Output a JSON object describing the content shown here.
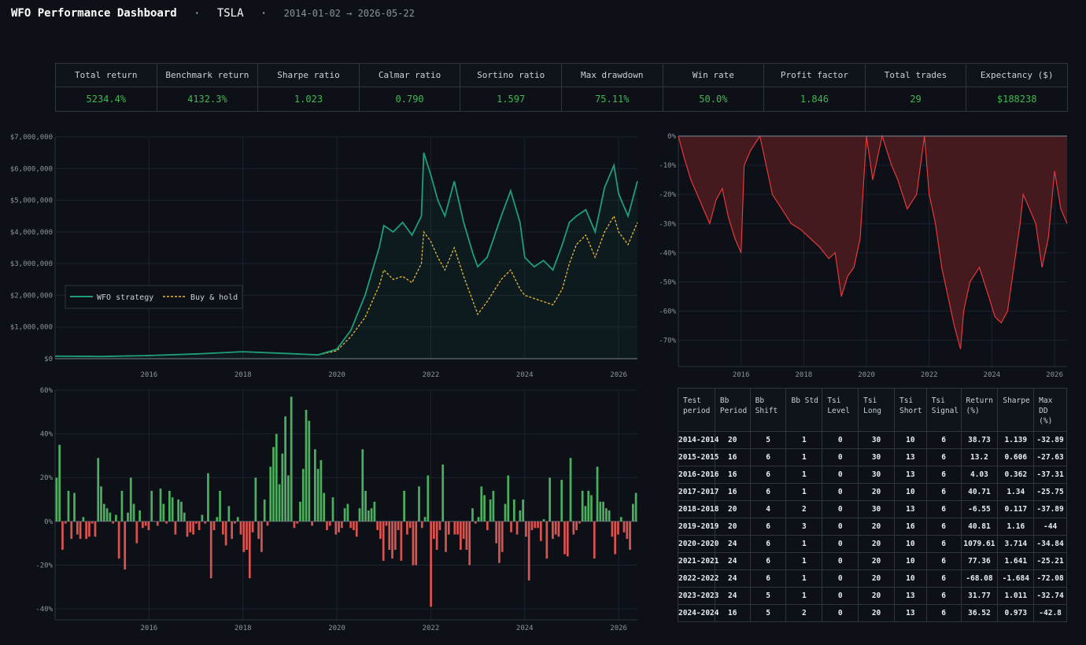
{
  "header": {
    "title": "WFO Performance Dashboard",
    "sep1": "·",
    "ticker": "TSLA",
    "sep2": "·",
    "date_range": "2014-01-02 → 2026-05-22"
  },
  "metrics": [
    {
      "label": "Total return",
      "value": "5234.4%"
    },
    {
      "label": "Benchmark return",
      "value": "4132.3%"
    },
    {
      "label": "Sharpe ratio",
      "value": "1.023"
    },
    {
      "label": "Calmar ratio",
      "value": "0.790"
    },
    {
      "label": "Sortino ratio",
      "value": "1.597"
    },
    {
      "label": "Max drawdown",
      "value": "75.11%"
    },
    {
      "label": "Win rate",
      "value": "50.0%"
    },
    {
      "label": "Profit factor",
      "value": "1.846"
    },
    {
      "label": "Total trades",
      "value": "29"
    },
    {
      "label": "Expectancy ($)",
      "value": "$188238"
    }
  ],
  "colors": {
    "background": "#0d1017",
    "positive": "#3fb950",
    "strategy": "#1f9e78",
    "benchmark": "#e8b93a",
    "drawdown": "#e5383b",
    "bar_up": "#4caf5e",
    "bar_down": "#d9534f",
    "grid": "#1c2230"
  },
  "chart_data": [
    {
      "type": "line",
      "title": "",
      "xlabel": "",
      "ylabel": "",
      "xlim": [
        2014.0,
        2026.4
      ],
      "ylim": [
        0,
        7000000
      ],
      "x_ticks": [
        "2016",
        "2018",
        "2020",
        "2022",
        "2024",
        "2026"
      ],
      "y_ticks": [
        "$0",
        "$1,000,000",
        "$2,000,000",
        "$3,000,000",
        "$4,000,000",
        "$5,000,000",
        "$6,000,000",
        "$7,000,000"
      ],
      "legend": "center-left",
      "grid": true,
      "series": [
        {
          "name": "WFO strategy",
          "x": [
            2014.0,
            2015.0,
            2016.0,
            2017.0,
            2018.0,
            2019.0,
            2019.6,
            2020.0,
            2020.3,
            2020.6,
            2020.9,
            2021.0,
            2021.2,
            2021.4,
            2021.6,
            2021.8,
            2021.85,
            2022.0,
            2022.15,
            2022.3,
            2022.5,
            2022.7,
            2022.9,
            2023.0,
            2023.2,
            2023.5,
            2023.7,
            2023.9,
            2024.0,
            2024.2,
            2024.4,
            2024.6,
            2024.8,
            2024.95,
            2025.1,
            2025.3,
            2025.5,
            2025.7,
            2025.9,
            2026.0,
            2026.2,
            2026.4
          ],
          "values": [
            80000,
            70000,
            100000,
            150000,
            220000,
            160000,
            120000,
            300000,
            900000,
            2000000,
            3500000,
            4200000,
            4000000,
            4300000,
            3900000,
            4500000,
            6500000,
            5800000,
            5000000,
            4500000,
            5600000,
            4300000,
            3300000,
            2900000,
            3200000,
            4500000,
            5300000,
            4300000,
            3200000,
            2900000,
            3100000,
            2800000,
            3600000,
            4300000,
            4500000,
            4700000,
            4000000,
            5400000,
            6100000,
            5200000,
            4500000,
            5600000
          ]
        },
        {
          "name": "Buy & hold",
          "x": [
            2014.0,
            2015.0,
            2016.0,
            2017.0,
            2018.0,
            2019.0,
            2019.6,
            2020.0,
            2020.3,
            2020.6,
            2020.9,
            2021.0,
            2021.2,
            2021.4,
            2021.6,
            2021.8,
            2021.85,
            2022.0,
            2022.15,
            2022.3,
            2022.5,
            2022.7,
            2022.9,
            2023.0,
            2023.2,
            2023.5,
            2023.7,
            2023.9,
            2024.0,
            2024.2,
            2024.4,
            2024.6,
            2024.8,
            2024.95,
            2025.1,
            2025.3,
            2025.5,
            2025.7,
            2025.9,
            2026.0,
            2026.2,
            2026.4
          ],
          "values": [
            80000,
            70000,
            100000,
            150000,
            220000,
            160000,
            120000,
            250000,
            700000,
            1300000,
            2300000,
            2800000,
            2500000,
            2600000,
            2400000,
            3000000,
            4000000,
            3700000,
            3200000,
            2800000,
            3500000,
            2600000,
            1800000,
            1400000,
            1800000,
            2500000,
            2800000,
            2200000,
            2000000,
            1900000,
            1800000,
            1700000,
            2200000,
            3000000,
            3600000,
            3900000,
            3200000,
            4000000,
            4500000,
            4000000,
            3600000,
            4300000
          ]
        }
      ]
    },
    {
      "type": "area",
      "title": "",
      "xlabel": "",
      "ylabel": "",
      "xlim": [
        2014.0,
        2026.4
      ],
      "ylim": [
        -79,
        0
      ],
      "x_ticks": [
        "2016",
        "2018",
        "2020",
        "2022",
        "2024",
        "2026"
      ],
      "y_ticks": [
        "0%",
        "-10%",
        "-20%",
        "-30%",
        "-40%",
        "-50%",
        "-60%",
        "-70%"
      ],
      "grid": true,
      "series": [
        {
          "name": "",
          "x": [
            2014.0,
            2014.2,
            2014.4,
            2014.6,
            2014.8,
            2015.0,
            2015.2,
            2015.4,
            2015.6,
            2015.8,
            2016.0,
            2016.1,
            2016.3,
            2016.6,
            2016.9,
            2017.0,
            2017.3,
            2017.6,
            2017.9,
            2018.2,
            2018.5,
            2018.8,
            2019.0,
            2019.2,
            2019.4,
            2019.6,
            2019.8,
            2020.0,
            2020.2,
            2020.5,
            2020.8,
            2021.0,
            2021.3,
            2021.6,
            2021.85,
            2022.0,
            2022.2,
            2022.4,
            2022.6,
            2022.8,
            2023.0,
            2023.1,
            2023.3,
            2023.6,
            2023.9,
            2024.1,
            2024.3,
            2024.5,
            2024.7,
            2024.9,
            2025.0,
            2025.2,
            2025.4,
            2025.6,
            2025.8,
            2026.0,
            2026.2,
            2026.4
          ],
          "values": [
            0,
            -8,
            -15,
            -20,
            -25,
            -30,
            -22,
            -18,
            -28,
            -35,
            -40,
            -10,
            -5,
            0,
            -15,
            -20,
            -25,
            -30,
            -32,
            -35,
            -38,
            -42,
            -40,
            -55,
            -48,
            -45,
            -35,
            0,
            -15,
            0,
            -10,
            -15,
            -25,
            -20,
            0,
            -20,
            -30,
            -45,
            -55,
            -65,
            -73,
            -60,
            -50,
            -45,
            -55,
            -62,
            -64,
            -60,
            -45,
            -30,
            -20,
            -25,
            -30,
            -45,
            -35,
            -12,
            -25,
            -30
          ]
        }
      ]
    },
    {
      "type": "bar",
      "title": "",
      "xlabel": "",
      "ylabel": "",
      "xlim": [
        2014.0,
        2026.4
      ],
      "ylim": [
        -45,
        60
      ],
      "x_ticks": [
        "2016",
        "2018",
        "2020",
        "2022",
        "2024",
        "2026"
      ],
      "y_ticks": [
        "-40%",
        "-20%",
        "0%",
        "20%",
        "40%",
        "60%"
      ],
      "grid": true,
      "series": [
        {
          "name": "",
          "values": [
            20,
            35,
            -13,
            -1,
            14,
            -8,
            13,
            -6,
            -8,
            2,
            -8,
            -7,
            -1,
            -7,
            29,
            16,
            8,
            6,
            4,
            -1,
            3,
            -17,
            14,
            -22,
            4,
            20,
            8,
            -10,
            5,
            -3,
            -2,
            -4,
            14,
            0,
            -2,
            15,
            8,
            -1,
            14,
            11,
            -6,
            10,
            9,
            4,
            -7,
            -5,
            -6,
            -1,
            -4,
            3,
            -1,
            22,
            -26,
            -4,
            2,
            14,
            -6,
            -11,
            7,
            -8,
            -1,
            2,
            -6,
            -14,
            -13,
            -26,
            -5,
            20,
            -8,
            -14,
            10,
            -2,
            25,
            34,
            40,
            17,
            31,
            48,
            21,
            57,
            -3,
            -1,
            9,
            24,
            51,
            46,
            -2,
            33,
            24,
            28,
            13,
            -4,
            -2,
            11,
            -6,
            -5,
            -3,
            6,
            8,
            -3,
            -4,
            -7,
            6,
            33,
            14,
            5,
            6,
            9,
            -4,
            -8,
            -18,
            -2,
            -13,
            -17,
            -13,
            -4,
            -18,
            14,
            -6,
            -3,
            -20,
            -20,
            16,
            -3,
            2,
            21,
            -39,
            -8,
            -13,
            -4,
            26,
            -14,
            -6,
            0,
            -6,
            -6,
            -13,
            -8,
            -13,
            -20,
            6,
            -1,
            2,
            16,
            12,
            -4,
            10,
            14,
            -10,
            -19,
            -14,
            8,
            21,
            -5,
            10,
            -6,
            5,
            10,
            -7,
            -27,
            -4,
            -3,
            -3,
            -9,
            1,
            -17,
            20,
            -8,
            -6,
            -7,
            19,
            -15,
            -16,
            29,
            -6,
            -4,
            -1,
            14,
            7,
            14,
            12,
            -17,
            25,
            9,
            9,
            6,
            5,
            -7,
            -15,
            -6,
            2,
            -5,
            -8,
            -13,
            8,
            13
          ]
        }
      ]
    }
  ],
  "params_table": {
    "headers": [
      "Test period",
      "Bb Period",
      "Bb Shift",
      "Bb Std",
      "Tsi Level",
      "Tsi Long",
      "Tsi Short",
      "Tsi Signal",
      "Return (%)",
      "Sharpe",
      "Max DD (%)"
    ],
    "rows": [
      [
        "2014-2014",
        "20",
        "5",
        "1",
        "0",
        "30",
        "10",
        "6",
        "38.73",
        "1.139",
        "-32.89"
      ],
      [
        "2015-2015",
        "16",
        "6",
        "1",
        "0",
        "30",
        "13",
        "6",
        "13.2",
        "0.606",
        "-27.63"
      ],
      [
        "2016-2016",
        "16",
        "6",
        "1",
        "0",
        "30",
        "13",
        "6",
        "4.03",
        "0.362",
        "-37.31"
      ],
      [
        "2017-2017",
        "16",
        "6",
        "1",
        "0",
        "20",
        "10",
        "6",
        "40.71",
        "1.34",
        "-25.75"
      ],
      [
        "2018-2018",
        "20",
        "4",
        "2",
        "0",
        "30",
        "13",
        "6",
        "-6.55",
        "0.117",
        "-37.89"
      ],
      [
        "2019-2019",
        "20",
        "6",
        "3",
        "0",
        "20",
        "16",
        "6",
        "40.81",
        "1.16",
        "-44"
      ],
      [
        "2020-2020",
        "24",
        "6",
        "1",
        "0",
        "20",
        "10",
        "6",
        "1079.61",
        "3.714",
        "-34.84"
      ],
      [
        "2021-2021",
        "24",
        "6",
        "1",
        "0",
        "20",
        "10",
        "6",
        "77.36",
        "1.641",
        "-25.21"
      ],
      [
        "2022-2022",
        "24",
        "6",
        "1",
        "0",
        "20",
        "10",
        "6",
        "-68.08",
        "-1.684",
        "-72.08"
      ],
      [
        "2023-2023",
        "24",
        "5",
        "1",
        "0",
        "20",
        "13",
        "6",
        "31.77",
        "1.011",
        "-32.74"
      ],
      [
        "2024-2024",
        "16",
        "5",
        "2",
        "0",
        "20",
        "13",
        "6",
        "36.52",
        "0.973",
        "-42.8"
      ]
    ]
  }
}
